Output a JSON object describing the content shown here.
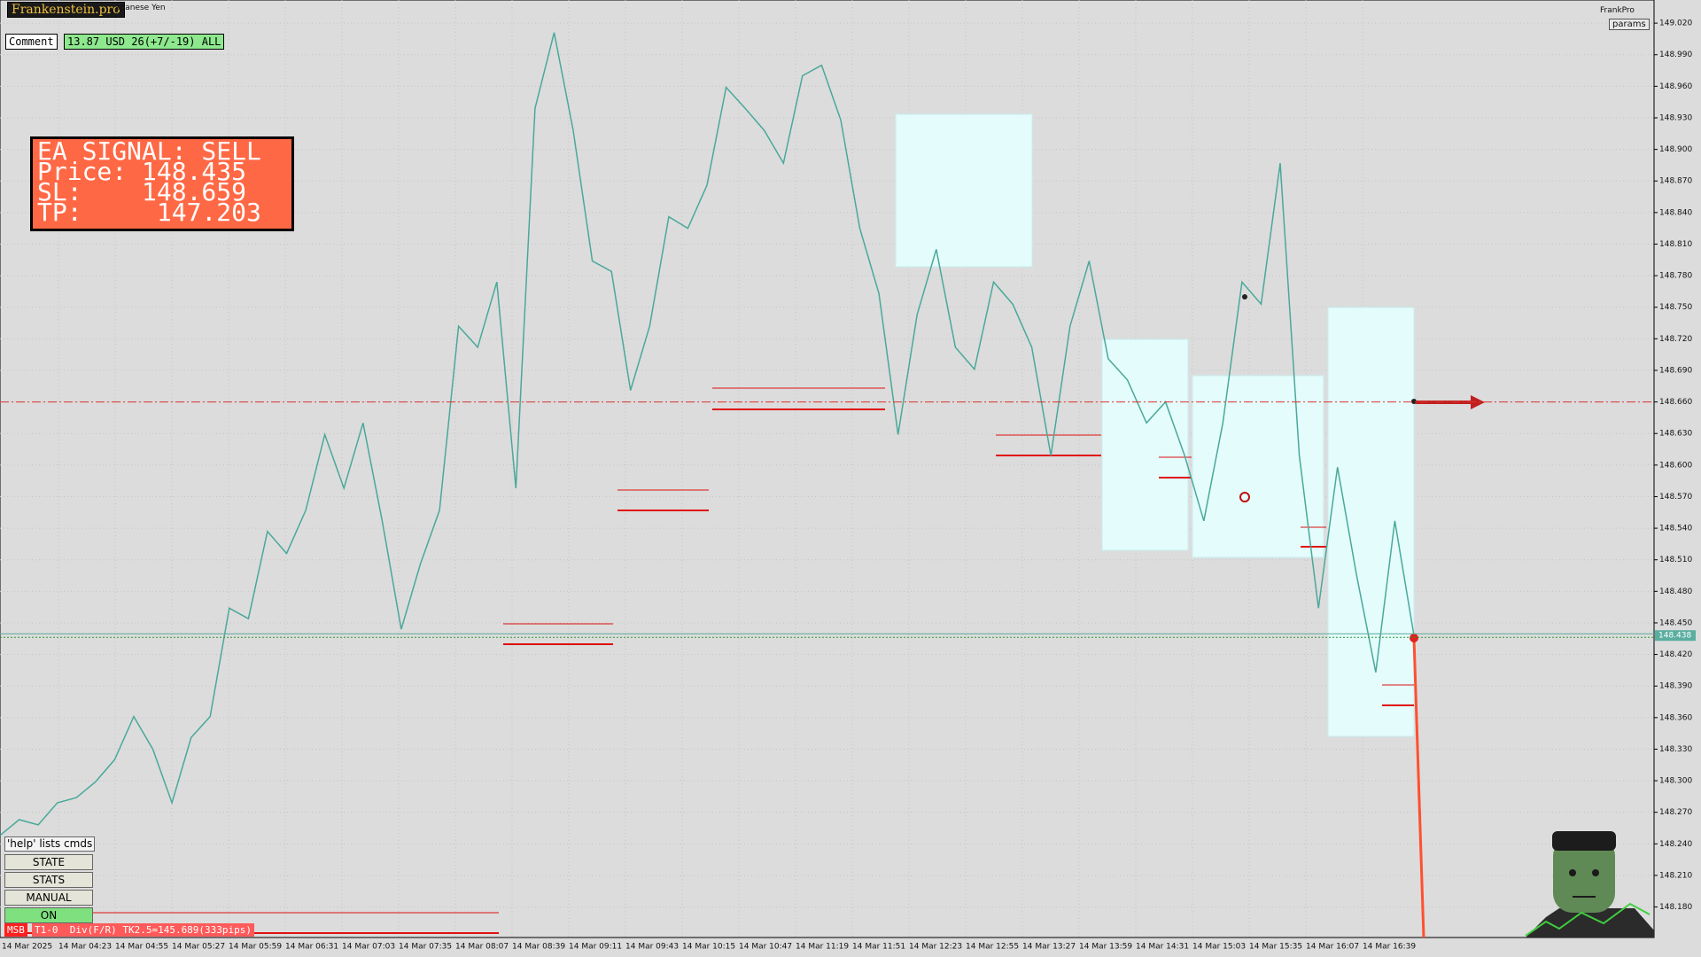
{
  "header": {
    "brand": "Frankenstein.pro",
    "symbol": "apanese Yen",
    "account": "FrankPro",
    "params": "params"
  },
  "comment": {
    "label": "Comment",
    "text": "13.87 USD 26(+7/-19) ALL"
  },
  "signal": {
    "line1": "EA SIGNAL: SELL",
    "price": "Price: 148.435",
    "sl": "SL:    148.659",
    "tp": "TP:     147.203"
  },
  "help": "'help' lists cmds",
  "buttons": [
    "STATE",
    "STATS",
    "MANUAL",
    "ON"
  ],
  "status": {
    "tag": "MSB",
    "text": "T1-0  Div(F/R) TK2.5=145.689(333pips)"
  },
  "chart_data": {
    "type": "line",
    "ylim": [
      148.151,
      149.042
    ],
    "yticks": [
      {
        "value": 148.18,
        "label": "148.180"
      },
      {
        "value": 148.21,
        "label": "148.210"
      },
      {
        "value": 148.24,
        "label": "148.240"
      },
      {
        "value": 148.27,
        "label": "148.270"
      },
      {
        "value": 148.3,
        "label": "148.300"
      },
      {
        "value": 148.33,
        "label": "148.330"
      },
      {
        "value": 148.36,
        "label": "148.360"
      },
      {
        "value": 148.39,
        "label": "148.390"
      },
      {
        "value": 148.42,
        "label": "148.420"
      },
      {
        "value": 148.45,
        "label": "148.450"
      },
      {
        "value": 148.48,
        "label": "148.480"
      },
      {
        "value": 148.51,
        "label": "148.510"
      },
      {
        "value": 148.54,
        "label": "148.540"
      },
      {
        "value": 148.57,
        "label": "148.570"
      },
      {
        "value": 148.6,
        "label": "148.600"
      },
      {
        "value": 148.63,
        "label": "148.630"
      },
      {
        "value": 148.66,
        "label": "148.660"
      },
      {
        "value": 148.69,
        "label": "148.690"
      },
      {
        "value": 148.72,
        "label": "148.720"
      },
      {
        "value": 148.75,
        "label": "148.750"
      },
      {
        "value": 148.78,
        "label": "148.780"
      },
      {
        "value": 148.81,
        "label": "148.810"
      },
      {
        "value": 148.84,
        "label": "148.840"
      },
      {
        "value": 148.87,
        "label": "148.870"
      },
      {
        "value": 148.9,
        "label": "148.900"
      },
      {
        "value": 148.93,
        "label": "148.930"
      },
      {
        "value": 148.96,
        "label": "148.960"
      },
      {
        "value": 148.99,
        "label": "148.990"
      },
      {
        "value": 149.02,
        "label": "149.020"
      }
    ],
    "xticks": [
      "14 Mar 2025",
      "14 Mar 04:23",
      "14 Mar 04:55",
      "14 Mar 05:27",
      "14 Mar 05:59",
      "14 Mar 06:31",
      "14 Mar 07:03",
      "14 Mar 07:35",
      "14 Mar 08:07",
      "14 Mar 08:39",
      "14 Mar 09:11",
      "14 Mar 09:43",
      "14 Mar 10:15",
      "14 Mar 10:47",
      "14 Mar 11:19",
      "14 Mar 11:51",
      "14 Mar 12:23",
      "14 Mar 12:55",
      "14 Mar 13:27",
      "14 Mar 13:59",
      "14 Mar 14:31",
      "14 Mar 15:03",
      "14 Mar 15:35",
      "14 Mar 16:07",
      "14 Mar 16:39"
    ],
    "grid": true,
    "color": "#4aa89a",
    "values": [
      148.248,
      148.263,
      148.258,
      148.279,
      148.284,
      148.299,
      148.32,
      148.361,
      148.33,
      148.279,
      148.341,
      148.361,
      148.464,
      148.454,
      148.537,
      148.516,
      148.557,
      148.629,
      148.578,
      148.64,
      148.547,
      148.444,
      148.506,
      148.557,
      148.732,
      148.712,
      148.774,
      148.578,
      148.939,
      149.011,
      148.918,
      148.794,
      148.784,
      148.671,
      148.732,
      148.836,
      148.825,
      148.866,
      148.959,
      148.939,
      148.918,
      148.887,
      148.97,
      148.98,
      148.928,
      148.825,
      148.763,
      148.629,
      148.743,
      148.805,
      148.712,
      148.691,
      148.774,
      148.753,
      148.712,
      148.609,
      148.732,
      148.794,
      148.701,
      148.681,
      148.64,
      148.66,
      148.609,
      148.547,
      148.64,
      148.774,
      148.753,
      148.887,
      148.609,
      148.464,
      148.598,
      148.495,
      148.403,
      148.547,
      148.438
    ],
    "signal_level": 148.66,
    "price_level": {
      "value": 148.438,
      "label": "148.438"
    }
  }
}
